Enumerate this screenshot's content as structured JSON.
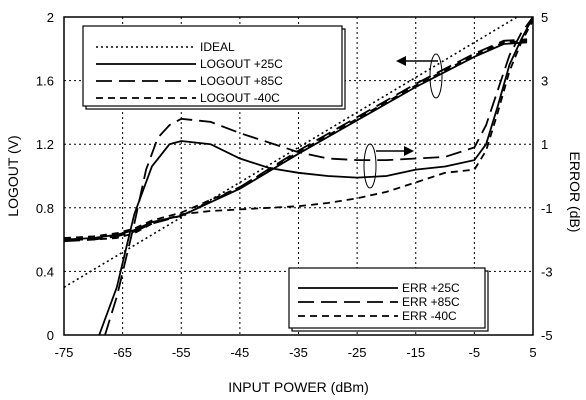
{
  "chart_data": {
    "type": "line",
    "xlabel": "INPUT POWER (dBm)",
    "ylabel": "LOGOUT (V)",
    "y2label": "ERROR  (dB)",
    "xlim": [
      -75,
      5
    ],
    "ylim": [
      0,
      2
    ],
    "y2lim": [
      -5,
      5
    ],
    "xticks": [
      "-75",
      "-65",
      "-55",
      "-45",
      "-35",
      "-25",
      "-15",
      "-5",
      "5"
    ],
    "yticks": [
      "0",
      "0.4",
      "0.8",
      "1.2",
      "1.6",
      "2"
    ],
    "y2ticks": [
      "-5",
      "-3",
      "-1",
      "1",
      "3",
      "5"
    ],
    "grid": true,
    "legends": [
      {
        "placement": "top-left",
        "entries": [
          "IDEAL",
          "LOGOUT +25C",
          "LOGOUT +85C",
          "LOGOUT  -40C"
        ]
      },
      {
        "placement": "bottom-right",
        "entries": [
          "ERR +25C",
          "ERR +85C",
          "ERR  -40C"
        ]
      }
    ],
    "series": [
      {
        "name": "IDEAL",
        "axis": "left",
        "style": "dotted",
        "x": [
          -75,
          -65,
          -55,
          -45,
          -35,
          -25,
          -15,
          -5,
          5
        ],
        "y": [
          0.3,
          0.52,
          0.74,
          0.96,
          1.18,
          1.4,
          1.62,
          1.84,
          2.06
        ]
      },
      {
        "name": "LOGOUT +25C",
        "axis": "left",
        "style": "solid",
        "x": [
          -75,
          -70,
          -66,
          -63,
          -60,
          -55,
          -45,
          -35,
          -25,
          -15,
          -5,
          0,
          4
        ],
        "y": [
          0.6,
          0.61,
          0.63,
          0.66,
          0.71,
          0.75,
          0.92,
          1.14,
          1.35,
          1.56,
          1.75,
          1.83,
          1.84
        ]
      },
      {
        "name": "LOGOUT +85C",
        "axis": "left",
        "style": "longdash",
        "x": [
          -75,
          -70,
          -66,
          -63,
          -60,
          -55,
          -45,
          -35,
          -25,
          -15,
          -5,
          0,
          4
        ],
        "y": [
          0.59,
          0.6,
          0.62,
          0.65,
          0.7,
          0.75,
          0.93,
          1.16,
          1.37,
          1.58,
          1.77,
          1.85,
          1.86
        ]
      },
      {
        "name": "LOGOUT  -40C",
        "axis": "left",
        "style": "dashed",
        "x": [
          -75,
          -70,
          -66,
          -63,
          -60,
          -55,
          -45,
          -35,
          -25,
          -15,
          -5,
          0,
          4
        ],
        "y": [
          0.61,
          0.62,
          0.64,
          0.67,
          0.72,
          0.77,
          0.93,
          1.15,
          1.36,
          1.57,
          1.76,
          1.84,
          1.85
        ]
      },
      {
        "name": "ERR +25C",
        "axis": "right",
        "style": "solid",
        "x": [
          -69,
          -66,
          -63,
          -60,
          -57,
          -55,
          -50,
          -45,
          -40,
          -35,
          -30,
          -25,
          -20,
          -15,
          -10,
          -5,
          -3,
          -1,
          1,
          3,
          5
        ],
        "y": [
          -5,
          -3.5,
          -1.2,
          0.3,
          1.0,
          1.1,
          1.0,
          0.55,
          0.25,
          0.1,
          0.0,
          -0.05,
          0.0,
          0.2,
          0.3,
          0.5,
          1.0,
          2.2,
          3.5,
          4.3,
          5.0
        ]
      },
      {
        "name": "ERR +85C",
        "axis": "right",
        "style": "longdash",
        "x": [
          -68,
          -66,
          -63,
          -61,
          -59,
          -57,
          -55,
          -50,
          -45,
          -40,
          -35,
          -30,
          -25,
          -20,
          -15,
          -10,
          -5,
          -3,
          -1,
          1,
          3,
          5
        ],
        "y": [
          -5,
          -3.8,
          -1.5,
          0.2,
          1.2,
          1.6,
          1.8,
          1.7,
          1.35,
          1.05,
          0.75,
          0.55,
          0.5,
          0.5,
          0.55,
          0.6,
          0.9,
          1.6,
          2.7,
          3.8,
          4.5,
          5.0
        ]
      },
      {
        "name": "ERR  -40C",
        "axis": "right",
        "style": "dashed",
        "x": [
          -75,
          -70,
          -66,
          -63,
          -60,
          -55,
          -50,
          -45,
          -40,
          -35,
          -30,
          -25,
          -20,
          -15,
          -10,
          -5,
          -3,
          -1,
          1,
          3,
          5
        ],
        "y": [
          -2.0,
          -2.0,
          -1.95,
          -1.8,
          -1.5,
          -1.2,
          -1.1,
          -1.05,
          -1.0,
          -0.95,
          -0.85,
          -0.7,
          -0.5,
          -0.2,
          0.1,
          0.2,
          0.8,
          2.0,
          3.3,
          4.2,
          4.9
        ]
      }
    ]
  }
}
